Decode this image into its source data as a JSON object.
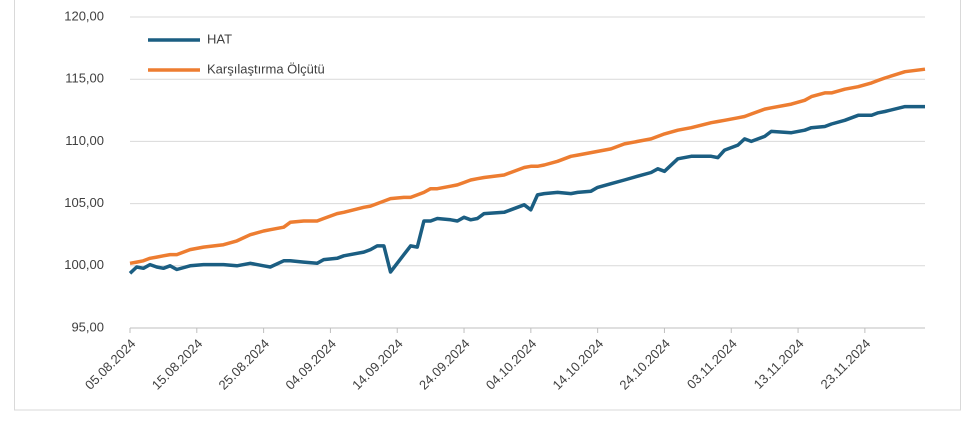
{
  "chart_data": {
    "type": "line",
    "x": [
      "05.08.2024",
      "06.08.2024",
      "07.08.2024",
      "08.08.2024",
      "09.08.2024",
      "10.08.2024",
      "11.08.2024",
      "12.08.2024",
      "14.08.2024",
      "16.08.2024",
      "19.08.2024",
      "21.08.2024",
      "23.08.2024",
      "25.08.2024",
      "26.08.2024",
      "28.08.2024",
      "29.08.2024",
      "31.08.2024",
      "02.09.2024",
      "03.09.2024",
      "05.09.2024",
      "06.09.2024",
      "09.09.2024",
      "10.09.2024",
      "11.09.2024",
      "12.09.2024",
      "13.09.2024",
      "15.09.2024",
      "16.09.2024",
      "17.09.2024",
      "18.09.2024",
      "19.09.2024",
      "20.09.2024",
      "22.09.2024",
      "23.09.2024",
      "24.09.2024",
      "25.09.2024",
      "26.09.2024",
      "27.09.2024",
      "30.09.2024",
      "01.10.2024",
      "03.10.2024",
      "04.10.2024",
      "05.10.2024",
      "06.10.2024",
      "08.10.2024",
      "10.10.2024",
      "11.10.2024",
      "13.10.2024",
      "14.10.2024",
      "16.10.2024",
      "18.10.2024",
      "20.10.2024",
      "22.10.2024",
      "23.10.2024",
      "24.10.2024",
      "26.10.2024",
      "28.10.2024",
      "31.10.2024",
      "01.11.2024",
      "02.11.2024",
      "04.11.2024",
      "05.11.2024",
      "06.11.2024",
      "08.11.2024",
      "09.11.2024",
      "12.11.2024",
      "14.11.2024",
      "15.11.2024",
      "17.11.2024",
      "18.11.2024",
      "20.11.2024",
      "22.11.2024",
      "24.11.2024",
      "25.11.2024",
      "26.11.2024",
      "29.11.2024",
      "02.12.2024"
    ],
    "series": [
      {
        "name": "HAT",
        "color": "#1b5e82",
        "values": [
          99.4,
          99.9,
          99.8,
          100.1,
          99.9,
          99.8,
          100.0,
          99.7,
          100.0,
          100.1,
          100.1,
          100.0,
          100.2,
          100.0,
          99.9,
          100.4,
          100.4,
          100.3,
          100.2,
          100.5,
          100.6,
          100.8,
          101.1,
          101.3,
          101.6,
          101.6,
          99.5,
          100.9,
          101.6,
          101.5,
          103.6,
          103.6,
          103.8,
          103.7,
          103.6,
          103.9,
          103.7,
          103.8,
          104.2,
          104.3,
          104.5,
          104.9,
          104.5,
          105.7,
          105.8,
          105.9,
          105.8,
          105.9,
          106.0,
          106.3,
          106.6,
          106.9,
          107.2,
          107.5,
          107.8,
          107.6,
          108.6,
          108.8,
          108.8,
          108.7,
          109.3,
          109.7,
          110.2,
          110.0,
          110.4,
          110.8,
          110.7,
          110.9,
          111.1,
          111.2,
          111.4,
          111.7,
          112.1,
          112.1,
          112.3,
          112.4,
          112.8,
          112.8
        ]
      },
      {
        "name": "Karşılaştırma Ölçütü",
        "color": "#ed7d31",
        "values": [
          100.2,
          100.3,
          100.4,
          100.6,
          100.7,
          100.8,
          100.9,
          100.9,
          101.3,
          101.5,
          101.7,
          102.0,
          102.5,
          102.8,
          102.9,
          103.1,
          103.5,
          103.6,
          103.6,
          103.8,
          104.2,
          104.3,
          104.7,
          104.8,
          105.0,
          105.2,
          105.4,
          105.5,
          105.5,
          105.7,
          105.9,
          106.2,
          106.2,
          106.4,
          106.5,
          106.7,
          106.9,
          107.0,
          107.1,
          107.3,
          107.5,
          107.9,
          108.0,
          108.0,
          108.1,
          108.4,
          108.8,
          108.9,
          109.1,
          109.2,
          109.4,
          109.8,
          110.0,
          110.2,
          110.4,
          110.6,
          110.9,
          111.1,
          111.5,
          111.6,
          111.7,
          111.9,
          112.0,
          112.2,
          112.6,
          112.7,
          113.0,
          113.3,
          113.6,
          113.9,
          113.9,
          114.2,
          114.4,
          114.7,
          114.9,
          115.1,
          115.6,
          115.8
        ]
      }
    ],
    "xlim": [
      "05.08.2024",
      "02.12.2024"
    ],
    "xticks": [
      "05.08.2024",
      "15.08.2024",
      "25.08.2024",
      "04.09.2024",
      "14.09.2024",
      "24.09.2024",
      "04.10.2024",
      "14.10.2024",
      "24.10.2024",
      "03.11.2024",
      "13.11.2024",
      "23.11.2024"
    ],
    "ylim": [
      95,
      120
    ],
    "yticks": [
      {
        "value": 95,
        "label": "95,00"
      },
      {
        "value": 100,
        "label": "100,00"
      },
      {
        "value": 105,
        "label": "105,00"
      },
      {
        "value": 110,
        "label": "110,00"
      },
      {
        "value": 115,
        "label": "115,00"
      },
      {
        "value": 120,
        "label": "120,00"
      }
    ],
    "grid": true,
    "legend": "top-left"
  }
}
